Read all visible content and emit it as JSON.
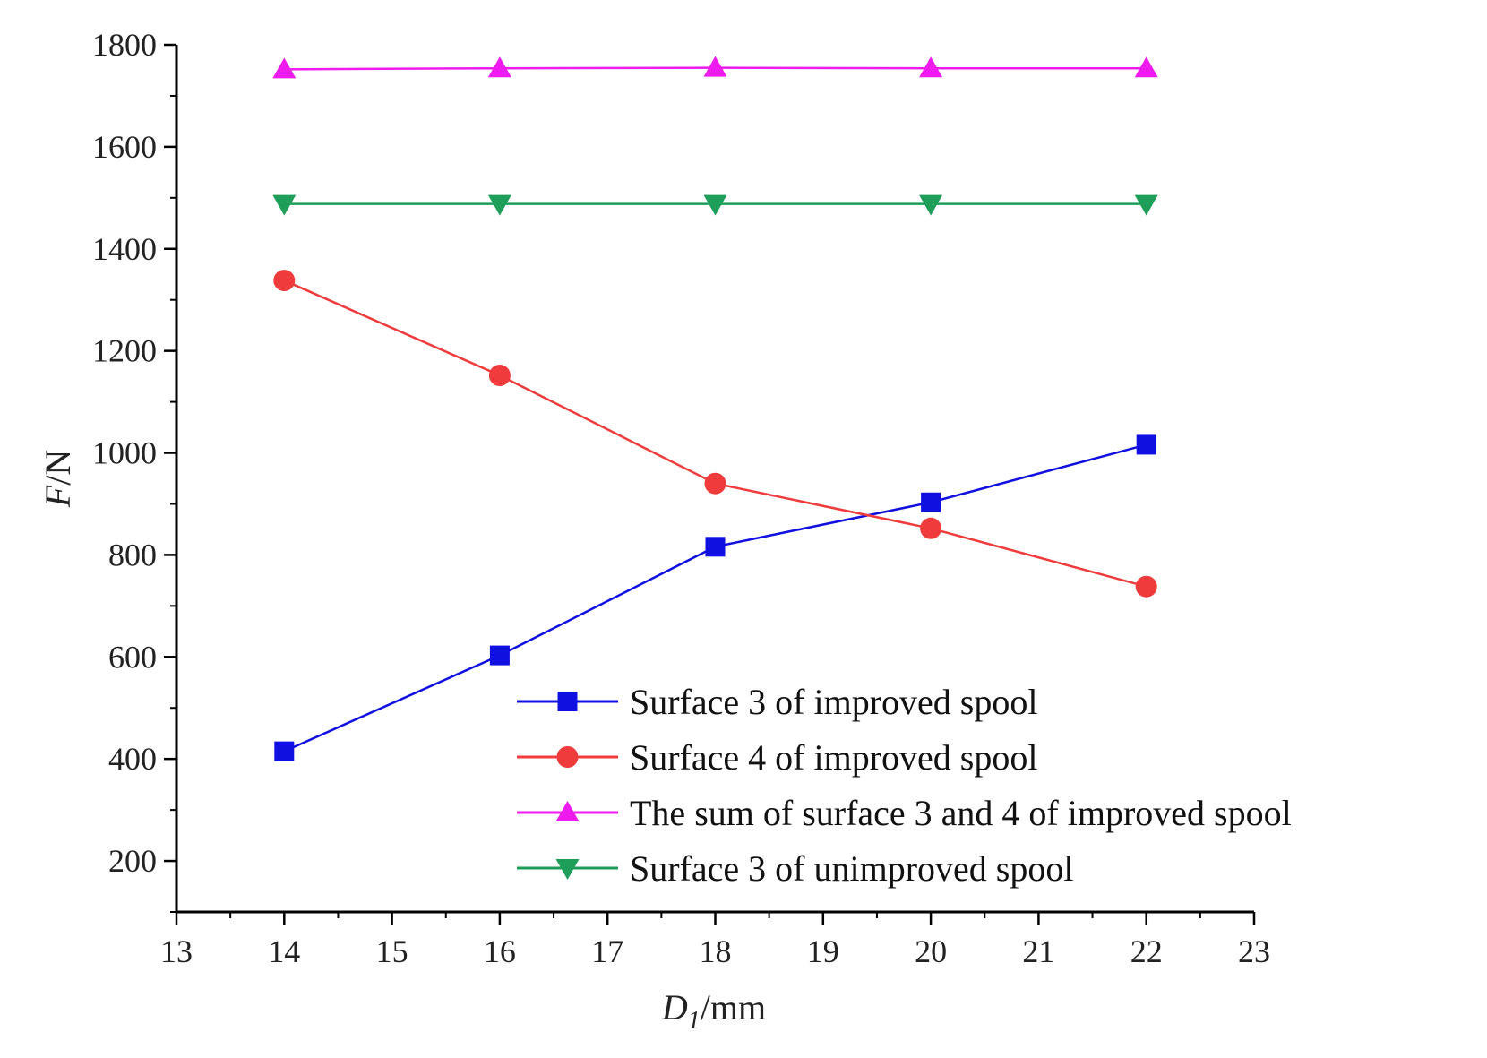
{
  "chart_data": {
    "type": "line",
    "title": "",
    "xlabel": {
      "var": "D",
      "sub": "1",
      "unit": "/mm"
    },
    "ylabel": {
      "var": "F",
      "unit": "/N"
    },
    "xlim": [
      13,
      23
    ],
    "ylim": [
      100,
      1800
    ],
    "xticks": [
      13,
      14,
      15,
      16,
      17,
      18,
      19,
      20,
      21,
      22,
      23
    ],
    "yticks": [
      200,
      400,
      600,
      800,
      1000,
      1200,
      1400,
      1600,
      1800
    ],
    "grid": false,
    "legend_position": "bottom-right",
    "x": [
      14,
      16,
      18,
      20,
      22
    ],
    "series": [
      {
        "name": "Surface 3 of improved spool",
        "color": "#1010e0",
        "marker": "square",
        "values": [
          415,
          603,
          816,
          903,
          1016
        ]
      },
      {
        "name": "Surface 4 of improved spool",
        "color": "#ef3b3b",
        "marker": "circle",
        "values": [
          1338,
          1152,
          940,
          852,
          738
        ]
      },
      {
        "name": "The sum of surface 3 and 4 of improved spool",
        "color": "#ee1aee",
        "marker": "triangle-up",
        "values": [
          1752,
          1754,
          1755,
          1754,
          1754
        ]
      },
      {
        "name": "Surface 3 of unimproved spool",
        "color": "#1f9e5a",
        "marker": "triangle-down",
        "values": [
          1488,
          1488,
          1488,
          1488,
          1488
        ]
      }
    ]
  }
}
